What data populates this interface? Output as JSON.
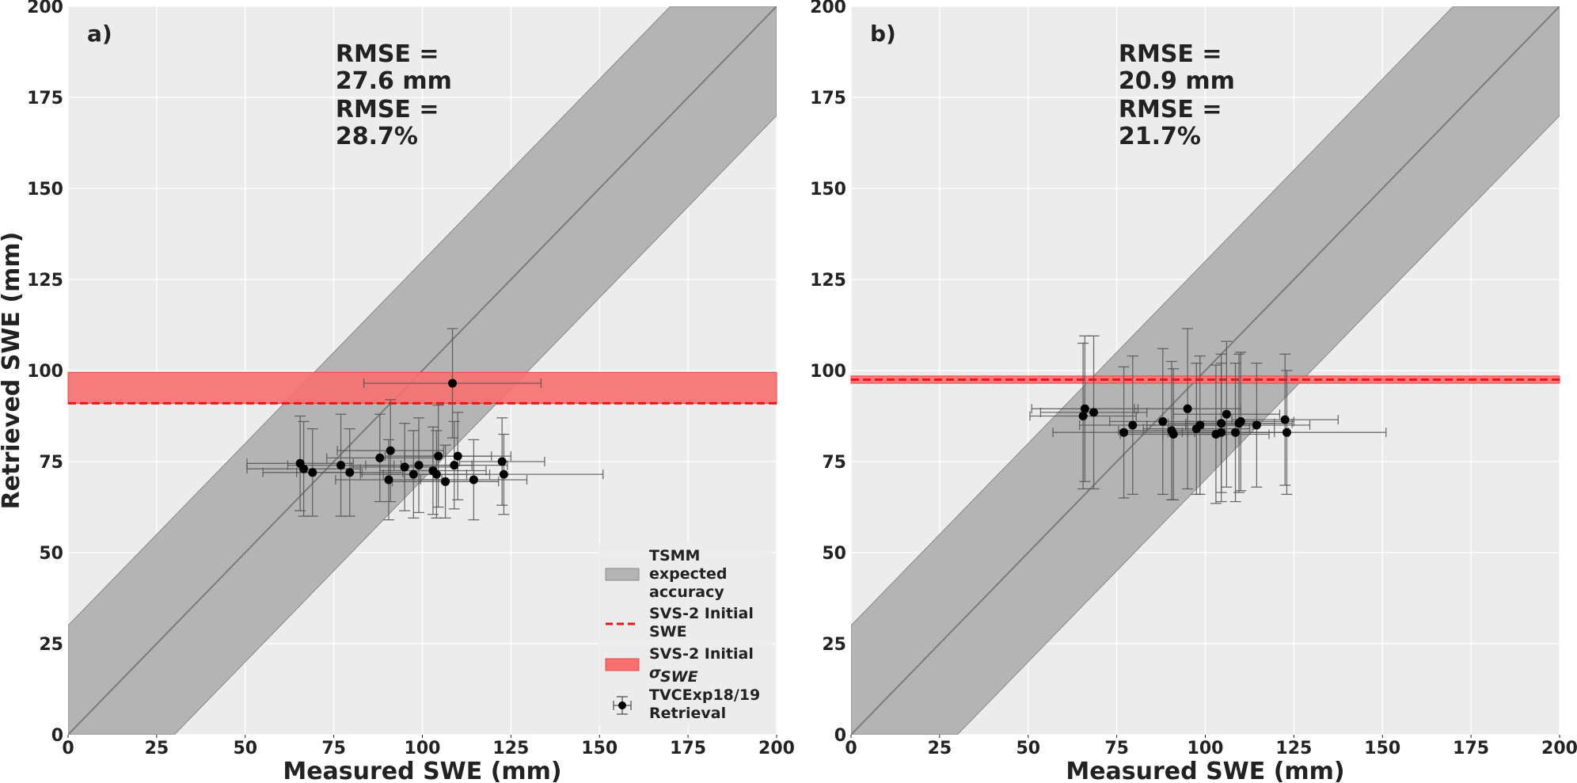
{
  "chart_data": [
    {
      "type": "scatter",
      "panel_label": "a)",
      "xlabel": "Measured SWE (mm)",
      "ylabel": "Retrieved SWE (mm)",
      "xlim": [
        0,
        200
      ],
      "ylim": [
        0,
        200
      ],
      "xticks": [
        "0",
        "25",
        "50",
        "75",
        "100",
        "125",
        "150",
        "175",
        "200"
      ],
      "yticks": [
        "0",
        "25",
        "50",
        "75",
        "100",
        "125",
        "150",
        "175",
        "200"
      ],
      "grid": true,
      "annotation": [
        "RMSE =",
        "27.6 mm",
        "RMSE =",
        "28.7%"
      ],
      "one_to_one_line": true,
      "tsmm_band_halfwidth": 30,
      "svs2_initial_swe": 91,
      "svs2_sigma_range": [
        91,
        99.5
      ],
      "legend": {
        "placement": "lower-right",
        "entries": [
          {
            "key": "tsmm",
            "label": [
              "TSMM",
              "expected",
              "accuracy"
            ]
          },
          {
            "key": "svs2_line",
            "label": [
              "SVS-2 Initial",
              "SWE"
            ]
          },
          {
            "key": "svs2_band",
            "label": [
              "SVS-2 Initial",
              "σ",
              "SWE"
            ]
          },
          {
            "key": "points",
            "label": [
              "TVCExp18/19",
              "Retrieval"
            ]
          }
        ]
      },
      "series": [
        {
          "x": [
            65.5,
            66.5,
            69,
            77,
            79.5,
            88,
            91,
            90.5,
            95,
            97.5,
            99,
            103,
            104,
            104.5,
            106.5,
            109,
            110,
            108.5,
            114.5,
            122.5,
            123
          ],
          "y": [
            74.5,
            73,
            72,
            74,
            72,
            76,
            78,
            70,
            73.5,
            71.5,
            74,
            72.5,
            71.5,
            76.5,
            69.5,
            74,
            76.5,
            96.5,
            70,
            75,
            71.5
          ],
          "xerr": [
            15,
            16,
            14,
            15,
            15,
            15,
            15,
            15,
            15,
            15,
            15,
            15,
            15,
            15,
            15,
            15,
            15,
            25,
            15,
            12,
            28
          ],
          "yerr": [
            13,
            13,
            12,
            14,
            12,
            12,
            14,
            11,
            12,
            12,
            13,
            12,
            12,
            14,
            10,
            12,
            12,
            15,
            11,
            12,
            11
          ]
        }
      ]
    },
    {
      "type": "scatter",
      "panel_label": "b)",
      "xlabel": "Measured SWE (mm)",
      "ylabel": "",
      "xlim": [
        0,
        200
      ],
      "ylim": [
        0,
        200
      ],
      "xticks": [
        "0",
        "25",
        "50",
        "75",
        "100",
        "125",
        "150",
        "175",
        "200"
      ],
      "yticks": [
        "0",
        "25",
        "50",
        "75",
        "100",
        "125",
        "150",
        "175",
        "200"
      ],
      "grid": true,
      "annotation": [
        "RMSE =",
        "20.9 mm",
        "RMSE =",
        "21.7%"
      ],
      "one_to_one_line": true,
      "tsmm_band_halfwidth": 30,
      "svs2_initial_swe": 97.5,
      "svs2_sigma_range": [
        96.5,
        98.5
      ],
      "series": [
        {
          "x": [
            65.5,
            66,
            68.5,
            77,
            79.5,
            88,
            90.5,
            91,
            95,
            97.5,
            98.5,
            103,
            104.5,
            104.5,
            106,
            108.5,
            109.5,
            110,
            114.5,
            122.5,
            123
          ],
          "y": [
            87.5,
            89.5,
            88.5,
            83,
            85,
            86,
            83.5,
            82.5,
            89.5,
            84,
            85,
            82.5,
            83,
            85.5,
            88,
            83,
            85.5,
            86,
            85,
            86.5,
            83
          ],
          "xerr": [
            15,
            15,
            15,
            20,
            15,
            15,
            15,
            15,
            15,
            15,
            15,
            15,
            15,
            15,
            15,
            15,
            15,
            15,
            15,
            15,
            28
          ],
          "yerr": [
            20,
            20,
            21,
            18,
            19,
            20,
            19,
            18,
            22,
            18,
            19,
            19,
            19,
            19,
            20,
            19,
            19,
            19,
            17,
            18,
            17
          ]
        }
      ]
    }
  ],
  "colors": {
    "axes_bg": "#ececec",
    "grid": "#ffffff",
    "band": "#b4b4b4",
    "band_edge": "#8a8a8a",
    "one_to_one": "#7b7b7b",
    "svs2_line": "#ef1515",
    "svs2_band": "#f76f6f",
    "points": "#000000",
    "errorbars": "#555555"
  }
}
